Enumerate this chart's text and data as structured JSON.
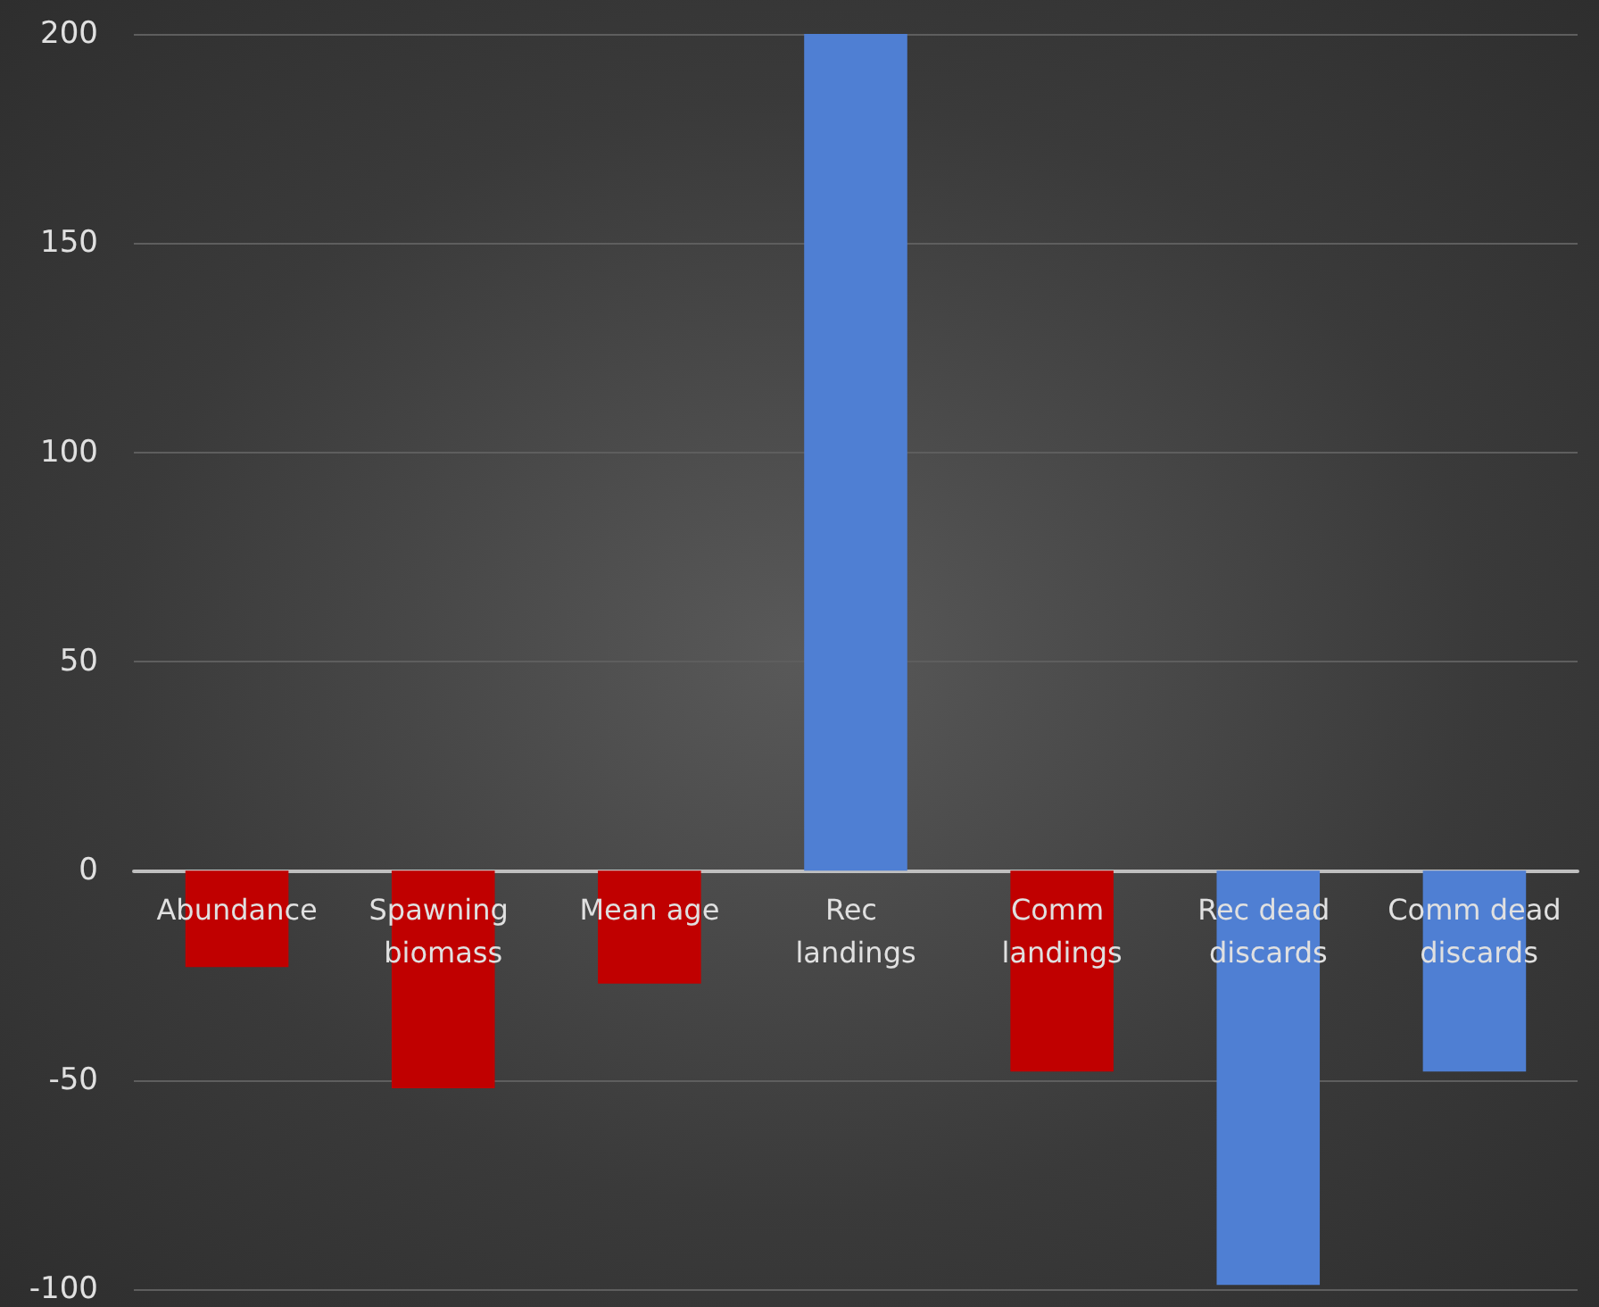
{
  "chart_data": {
    "type": "bar",
    "categories": [
      "Abundance",
      "Spawning biomass",
      "Mean age",
      "Rec landings",
      "Comm landings",
      "Rec dead discards",
      "Comm dead discards"
    ],
    "values": [
      -23,
      -52,
      -27,
      200,
      -48,
      -99,
      -48
    ],
    "colors": [
      "#c00000",
      "#c00000",
      "#c00000",
      "#4f7fd3",
      "#c00000",
      "#4f7fd3",
      "#4f7fd3"
    ],
    "ylim": [
      -100,
      200
    ],
    "yticks": [
      -100,
      -50,
      0,
      50,
      100,
      150,
      200
    ],
    "grid": "y"
  }
}
